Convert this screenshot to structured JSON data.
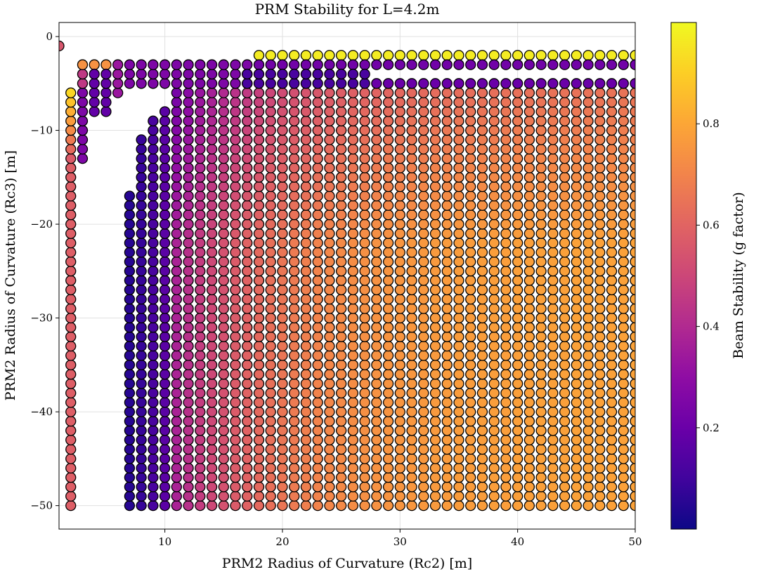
{
  "chart_data": {
    "type": "scatter",
    "title": "PRM Stability for L=4.2m",
    "xlabel": "PRM2 Radius of Curvature (Rc2) [m]",
    "ylabel": "PRM2 Radius of Curvature (Rc3) [m]",
    "xlim": [
      1,
      50
    ],
    "ylim": [
      -52.5,
      1.5
    ],
    "xticks": [
      10,
      20,
      30,
      40,
      50
    ],
    "yticks": [
      0,
      -10,
      -20,
      -30,
      -40,
      -50
    ],
    "grid": true,
    "colormap": "plasma",
    "colorbar": {
      "label": "Beam Stability (g factor)",
      "range": [
        0.0,
        1.0
      ],
      "ticks": [
        0.2,
        0.4,
        0.6,
        0.8
      ]
    },
    "grid_spacing": {
      "x": 1,
      "y": 1
    },
    "regions": [
      {
        "x": [
          1,
          1
        ],
        "y": [
          -1,
          -1
        ],
        "g": "0.55"
      },
      {
        "x": [
          2,
          2
        ],
        "y": [
          -50,
          -14
        ],
        "g": "0.58"
      },
      {
        "x": [
          2,
          2
        ],
        "y": [
          -13,
          -6
        ],
        "g": "0.52 + 0.05*(y+14)"
      },
      {
        "x": [
          3,
          3
        ],
        "y": [
          -13,
          -6
        ],
        "g": "0.25"
      },
      {
        "x": [
          3,
          3
        ],
        "y": [
          -5,
          -4
        ],
        "g": "0.45"
      },
      {
        "x": [
          3,
          5
        ],
        "y": [
          -3,
          -3
        ],
        "g": "0.74"
      },
      {
        "x": [
          4,
          5
        ],
        "y": [
          -8,
          -4
        ],
        "g": "0.18"
      },
      {
        "x": [
          6,
          6
        ],
        "y": [
          -6,
          -3
        ],
        "g": "0.33"
      },
      {
        "x": [
          7,
          7
        ],
        "y": [
          -50,
          -17
        ],
        "g": "0.05"
      },
      {
        "x": [
          8,
          8
        ],
        "y": [
          -50,
          -11
        ],
        "g": "0.08"
      },
      {
        "x": [
          9,
          9
        ],
        "y": [
          -50,
          -9
        ],
        "g": "0.12"
      },
      {
        "x": [
          10,
          10
        ],
        "y": [
          -50,
          -8
        ],
        "g": "0.16"
      },
      {
        "x": [
          11,
          50
        ],
        "y": [
          -50,
          -6
        ],
        "g": "gradient(x,y)"
      },
      {
        "x": [
          7,
          17
        ],
        "y": [
          -5,
          -3
        ],
        "g": "0.25"
      },
      {
        "x": [
          18,
          50
        ],
        "y": [
          -2,
          -2
        ],
        "g": "0.97"
      },
      {
        "x": [
          18,
          50
        ],
        "y": [
          -3,
          -3
        ],
        "g": "0.22"
      },
      {
        "x": [
          17,
          27
        ],
        "y": [
          -5,
          -4
        ],
        "g": "0.12"
      },
      {
        "x": [
          28,
          50
        ],
        "y": [
          -5,
          -5
        ],
        "g": "0.20"
      }
    ]
  }
}
